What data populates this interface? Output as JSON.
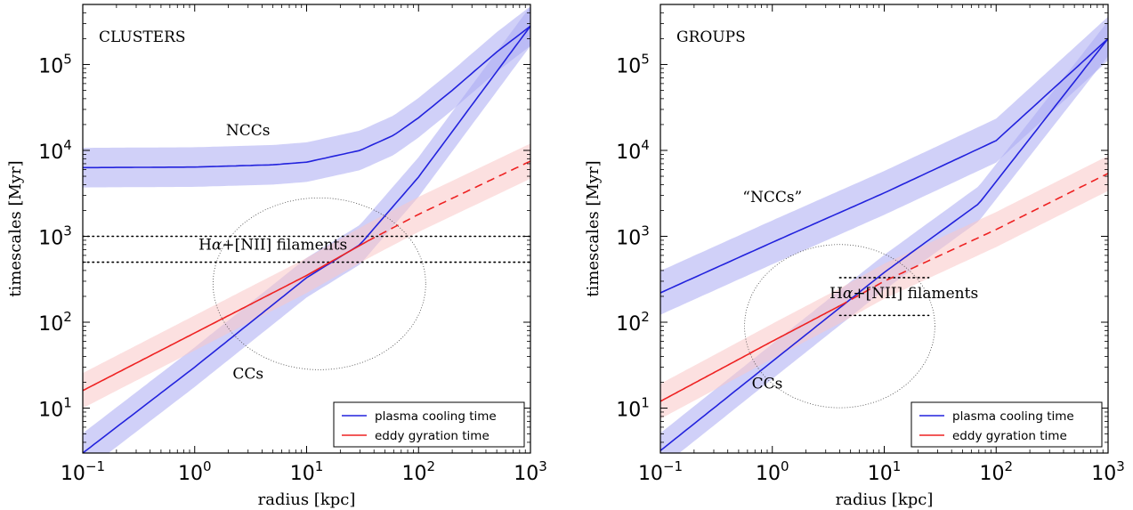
{
  "chart_data": [
    {
      "type": "line",
      "panel_label": "CLUSTERS",
      "xlabel": "radius [kpc]",
      "ylabel": "timescales [Myr]",
      "xscale": "log",
      "yscale": "log",
      "xlim": [
        0.1,
        1000
      ],
      "ylim": [
        3,
        500000
      ],
      "xticks": [
        {
          "value": 0.1,
          "base": "10",
          "exp": "−1"
        },
        {
          "value": 1,
          "base": "10",
          "exp": "0"
        },
        {
          "value": 10,
          "base": "10",
          "exp": "1"
        },
        {
          "value": 100,
          "base": "10",
          "exp": "2"
        },
        {
          "value": 1000,
          "base": "10",
          "exp": "3"
        }
      ],
      "yticks": [
        {
          "value": 10,
          "base": "10",
          "exp": "1"
        },
        {
          "value": 100,
          "base": "10",
          "exp": "2"
        },
        {
          "value": 1000,
          "base": "10",
          "exp": "3"
        },
        {
          "value": 10000,
          "base": "10",
          "exp": "4"
        },
        {
          "value": 100000,
          "base": "10",
          "exp": "5"
        }
      ],
      "series": [
        {
          "name": "plasma cooling time",
          "label": "NCCs",
          "color": "#2222dd",
          "band_color": "#aaaaf2",
          "style": "solid",
          "x": [
            0.1,
            1,
            5,
            10,
            30,
            60,
            100,
            200,
            500,
            1000
          ],
          "y": [
            6300,
            6400,
            6800,
            7300,
            10000,
            15000,
            24000,
            50000,
            140000,
            280000
          ],
          "band_factor": 1.7
        },
        {
          "name": "plasma cooling time",
          "label": "CCs",
          "color": "#2222dd",
          "band_color": "#aaaaf2",
          "style": "solid",
          "x": [
            0.1,
            1,
            10,
            30,
            100,
            1000
          ],
          "y": [
            3,
            30,
            330,
            800,
            4900,
            280000
          ],
          "band_factor": 1.7
        },
        {
          "name": "eddy gyration time",
          "color": "#ee2222",
          "band_color": "#f9c6c6",
          "style": "solid-then-dashed",
          "dash_from_x": 35,
          "x": [
            0.1,
            1,
            10,
            35,
            100,
            1000
          ],
          "y": [
            16,
            75,
            350,
            880,
            1800,
            7500
          ],
          "band_factor": 1.6
        }
      ],
      "reference_lines": [
        {
          "y": 1000,
          "x_range": [
            0.1,
            1000
          ],
          "style": "dotted"
        },
        {
          "y": 500,
          "x_range": [
            0.1,
            1000
          ],
          "style": "dotted"
        }
      ],
      "annotations": [
        {
          "text": "NCCs",
          "x": 3.0,
          "y": 15000
        },
        {
          "text": "CCs",
          "x": 3.0,
          "y": 22
        },
        {
          "text_prefix": "H",
          "text_italic": "α",
          "text_suffix": "+[NII] filaments",
          "x": 5.0,
          "y": 700
        }
      ],
      "highlight_ellipse": {
        "cx": 13,
        "cy": 280,
        "rx_decades": 0.95,
        "ry_decades": 1.0,
        "style": "dotted"
      },
      "legend": {
        "position": "lower right",
        "entries": [
          "plasma cooling time",
          "eddy gyration time"
        ]
      }
    },
    {
      "type": "line",
      "panel_label": "GROUPS",
      "xlabel": "radius [kpc]",
      "ylabel": "timescales [Myr]",
      "xscale": "log",
      "yscale": "log",
      "xlim": [
        0.1,
        1000
      ],
      "ylim": [
        3,
        500000
      ],
      "xticks": [
        {
          "value": 0.1,
          "base": "10",
          "exp": "−1"
        },
        {
          "value": 1,
          "base": "10",
          "exp": "0"
        },
        {
          "value": 10,
          "base": "10",
          "exp": "1"
        },
        {
          "value": 100,
          "base": "10",
          "exp": "2"
        },
        {
          "value": 1000,
          "base": "10",
          "exp": "3"
        }
      ],
      "yticks": [
        {
          "value": 10,
          "base": "10",
          "exp": "1"
        },
        {
          "value": 100,
          "base": "10",
          "exp": "2"
        },
        {
          "value": 1000,
          "base": "10",
          "exp": "3"
        },
        {
          "value": 10000,
          "base": "10",
          "exp": "4"
        },
        {
          "value": 100000,
          "base": "10",
          "exp": "5"
        }
      ],
      "series": [
        {
          "name": "plasma cooling time",
          "label": "“NCCs”",
          "color": "#2222dd",
          "band_color": "#aaaaf2",
          "style": "solid",
          "x": [
            0.1,
            1,
            10,
            100,
            1000
          ],
          "y": [
            220,
            850,
            3200,
            13000,
            200000
          ],
          "band_factor": 1.8
        },
        {
          "name": "plasma cooling time",
          "label": "CCs",
          "color": "#2222dd",
          "band_color": "#aaaaf2",
          "style": "solid",
          "x": [
            0.1,
            1,
            10,
            70,
            1000
          ],
          "y": [
            3.2,
            35,
            380,
            2400,
            200000
          ],
          "band_factor": 1.6
        },
        {
          "name": "eddy gyration time",
          "color": "#ee2222",
          "band_color": "#f9c6c6",
          "style": "solid-then-dashed",
          "dash_from_x": 4,
          "x": [
            0.1,
            1,
            4,
            10,
            100,
            1000
          ],
          "y": [
            12,
            60,
            155,
            300,
            1200,
            5400
          ],
          "band_factor": 1.6
        }
      ],
      "reference_lines": [
        {
          "y": 330,
          "x_range": [
            4,
            25
          ],
          "style": "dotted"
        },
        {
          "y": 120,
          "x_range": [
            4,
            25
          ],
          "style": "dotted"
        }
      ],
      "annotations": [
        {
          "text": "“NCCs”",
          "x": 1.0,
          "y": 2500
        },
        {
          "text": "CCs",
          "x": 0.9,
          "y": 17
        },
        {
          "text_prefix": "H",
          "text_italic": "α",
          "text_suffix": "+[NII] filaments",
          "x": 15,
          "y": 190
        }
      ],
      "highlight_ellipse": {
        "cx": 4,
        "cy": 90,
        "rx_decades": 0.85,
        "ry_decades": 0.95,
        "style": "dotted"
      },
      "legend": {
        "position": "lower right",
        "entries": [
          "plasma cooling time",
          "eddy gyration time"
        ]
      }
    }
  ]
}
